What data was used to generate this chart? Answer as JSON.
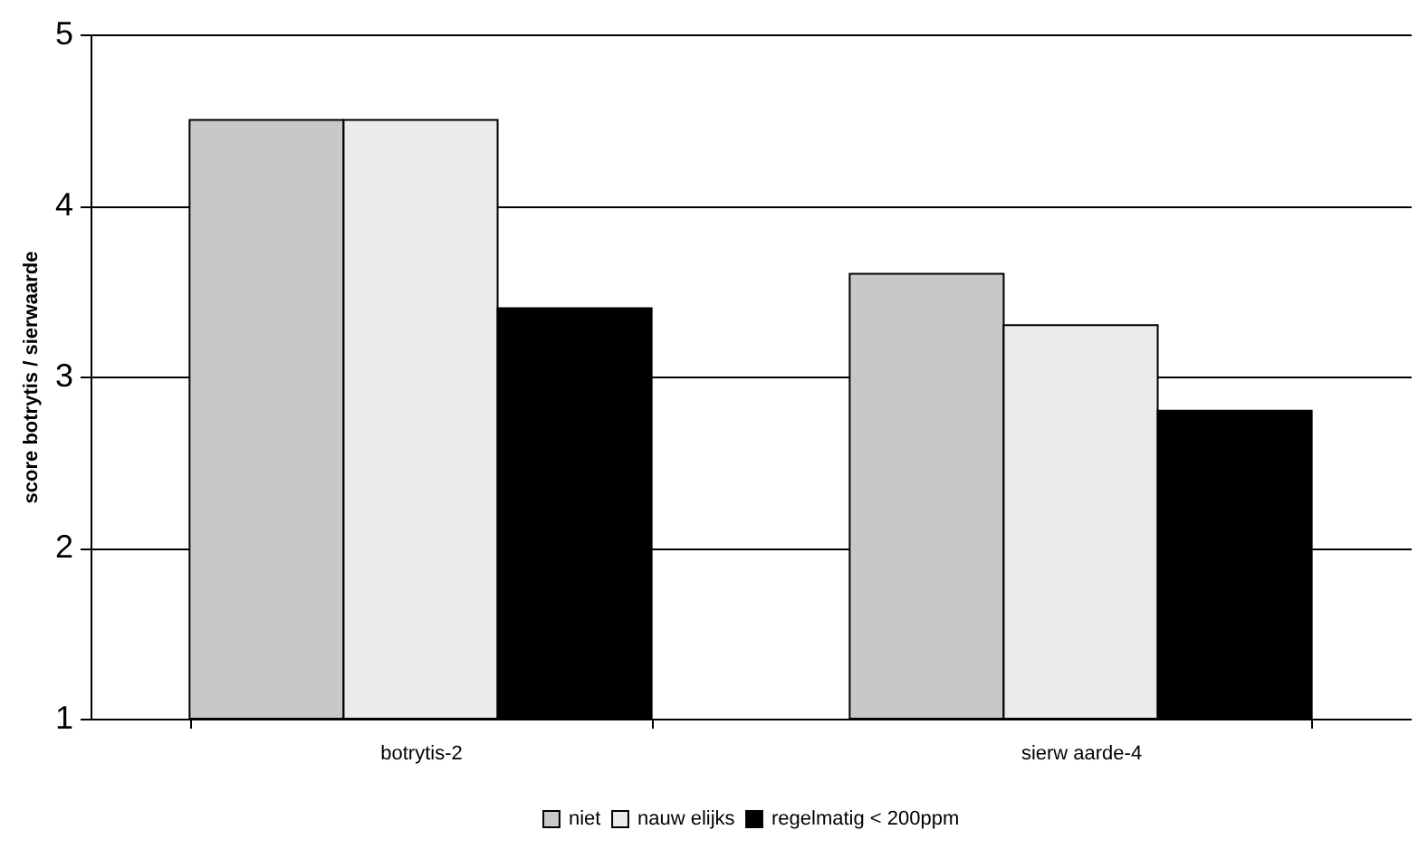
{
  "chart_data": {
    "type": "bar",
    "ylabel": "score botrytis / sierwaarde",
    "categories": [
      "botrytis-2",
      "sierw aarde-4"
    ],
    "series": [
      {
        "name": "niet",
        "color": "#c8c8c8",
        "values": [
          4.5,
          3.6
        ]
      },
      {
        "name": "nauw elijks",
        "color": "#ebebeb",
        "values": [
          4.5,
          3.3
        ]
      },
      {
        "name": "regelmatig < 200ppm",
        "color": "#000000",
        "values": [
          3.4,
          2.8
        ]
      }
    ],
    "ylim": [
      1,
      5
    ],
    "yticks": [
      1,
      2,
      3,
      4,
      5
    ],
    "grid": "y",
    "legend": "bottom"
  }
}
